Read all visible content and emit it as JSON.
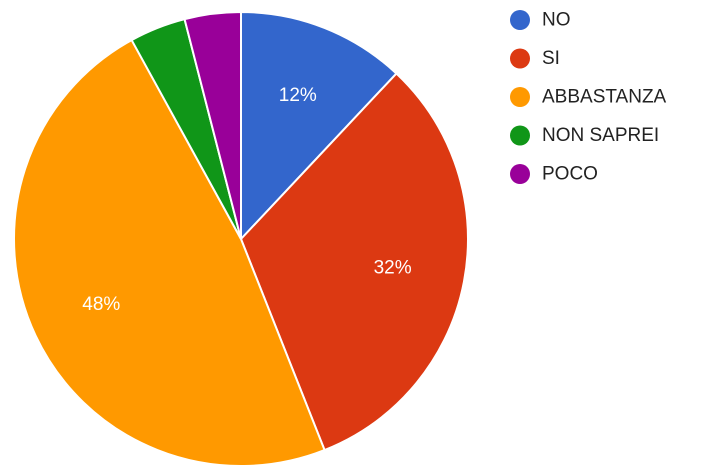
{
  "chart_data": {
    "type": "pie",
    "categories": [
      "NO",
      "SI",
      "ABBASTANZA",
      "NON SAPREI",
      "POCO"
    ],
    "values": [
      12,
      32,
      48,
      4,
      4
    ],
    "data_labels": [
      "12%",
      "32%",
      "48%",
      "",
      ""
    ],
    "colors": [
      "#3366cc",
      "#dc3912",
      "#ff9900",
      "#109618",
      "#990099"
    ],
    "start_angle_deg": 0,
    "direction": "clockwise",
    "legend": {
      "placement": "right",
      "items": [
        "NO",
        "SI",
        "ABBASTANZA",
        "NON SAPREI",
        "POCO"
      ]
    }
  }
}
